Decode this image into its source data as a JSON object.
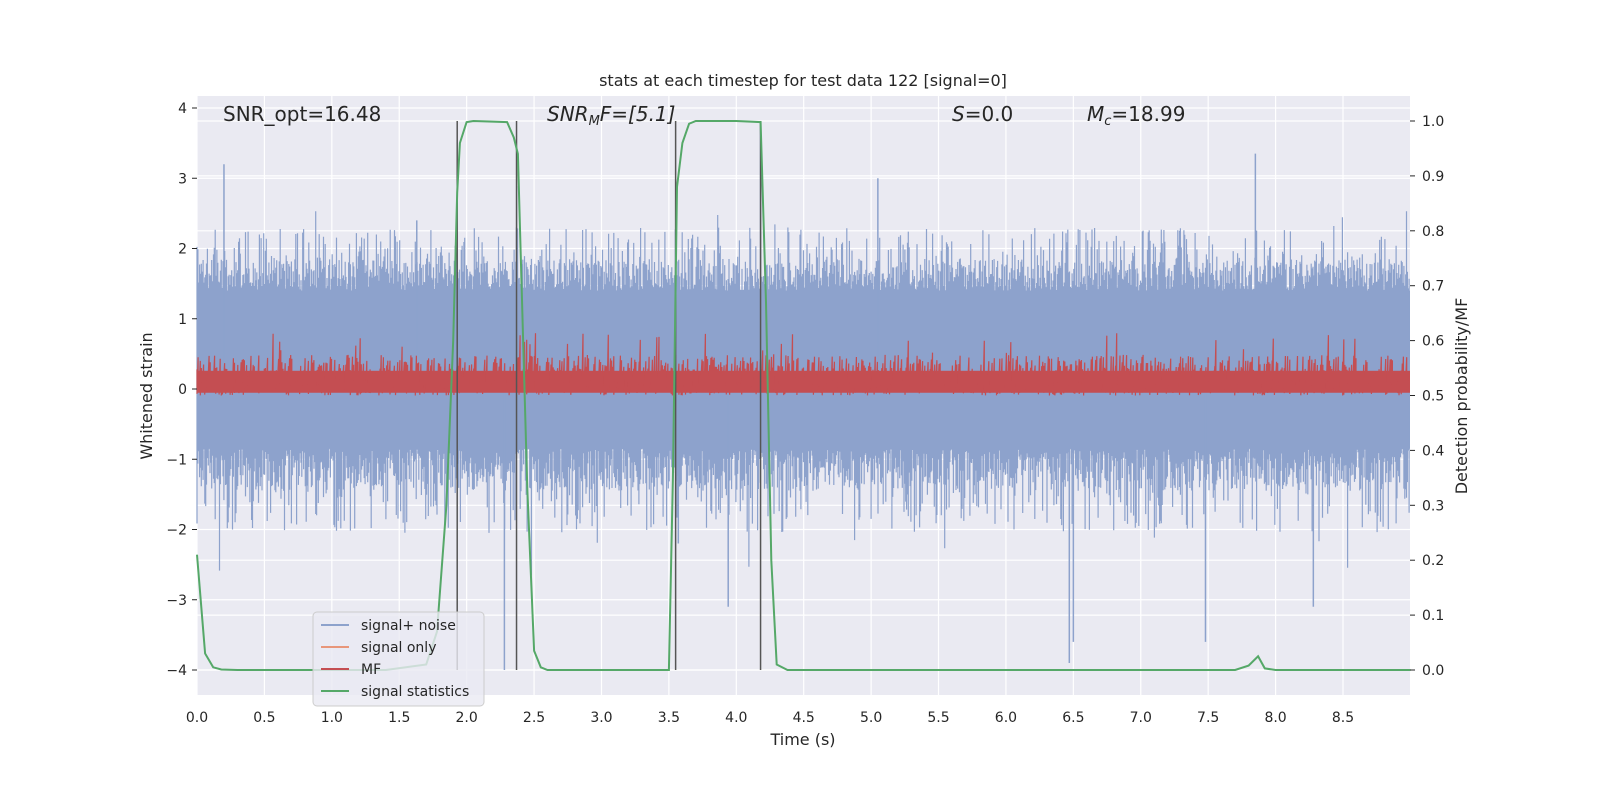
{
  "chart_data": {
    "type": "line",
    "title": "stats at each timestep for test data 122 [signal=0]",
    "xlabel": "Time (s)",
    "ylabel": "Whitened strain",
    "y2label": "Detection probability/MF",
    "xlim": [
      0.0,
      9.0
    ],
    "ylim": [
      -4.35,
      4.2
    ],
    "y2lim": [
      -0.05,
      1.04
    ],
    "xticks": [
      "0.0",
      "0.5",
      "1.0",
      "1.5",
      "2.0",
      "2.5",
      "3.0",
      "3.5",
      "4.0",
      "4.5",
      "5.0",
      "5.5",
      "6.0",
      "6.5",
      "7.0",
      "7.5",
      "8.0",
      "8.5"
    ],
    "yticks": [
      "−4",
      "−3",
      "−2",
      "−1",
      "0",
      "1",
      "2",
      "3",
      "4"
    ],
    "y2ticks": [
      "0.0",
      "0.1",
      "0.2",
      "0.3",
      "0.4",
      "0.5",
      "0.6",
      "0.7",
      "0.8",
      "0.9",
      "1.0"
    ],
    "annotations": {
      "snr_opt": "SNR_opt=16.48",
      "snr_mf_pre": "SNR",
      "snr_mf_sub": "M",
      "snr_mf_post": "F=[5.1]",
      "s_pre": "S",
      "s_post": "=0.0",
      "mc_pre": "M",
      "mc_sub": "c",
      "mc_post": "=18.99"
    },
    "legend": {
      "placement": "lower-left",
      "entries": [
        "signal+ noise",
        "signal only",
        "MF",
        "signal statistics"
      ]
    },
    "vertical_lines_x": [
      1.93,
      2.37,
      3.55,
      4.18
    ],
    "colors": {
      "noise": "#8da2cc",
      "signal_only": "#e8967a",
      "mf": "#c44e52",
      "stats": "#55a868",
      "vline": "#555555",
      "background": "#eaeaf2",
      "grid": "#ffffff"
    },
    "series": [
      {
        "name": "signal statistics",
        "axis": "y2",
        "x": [
          0.0,
          0.06,
          0.12,
          0.18,
          0.3,
          0.6,
          1.0,
          1.4,
          1.7,
          1.78,
          1.85,
          1.9,
          1.93,
          1.95,
          2.0,
          2.05,
          2.3,
          2.35,
          2.38,
          2.45,
          2.5,
          2.55,
          2.6,
          3.0,
          3.5,
          3.53,
          3.56,
          3.6,
          3.65,
          3.7,
          4.0,
          4.18,
          4.22,
          4.26,
          4.3,
          4.38,
          4.5,
          5.0,
          6.0,
          7.0,
          7.7,
          7.8,
          7.87,
          7.92,
          8.0,
          8.5,
          9.0
        ],
        "y": [
          0.21,
          0.03,
          0.005,
          0.001,
          0.0,
          0.0,
          0.0,
          0.0,
          0.01,
          0.07,
          0.3,
          0.6,
          0.87,
          0.96,
          0.998,
          1.0,
          0.998,
          0.97,
          0.94,
          0.33,
          0.035,
          0.005,
          0.0,
          0.0,
          0.0,
          0.35,
          0.88,
          0.96,
          0.995,
          1.0,
          1.0,
          0.998,
          0.67,
          0.2,
          0.01,
          0.0,
          0.0,
          0.0,
          0.0,
          0.0,
          0.0,
          0.008,
          0.025,
          0.003,
          0.0,
          0.0,
          0.0
        ]
      },
      {
        "name": "signal+ noise",
        "axis": "y",
        "generated_from": "noise envelope",
        "band_inner": [
          -0.85,
          1.4
        ],
        "typical_range": [
          -2.3,
          2.3
        ]
      },
      {
        "name": "MF",
        "axis": "y",
        "generated_from": "noise envelope",
        "band": [
          0.02,
          0.62
        ]
      }
    ]
  }
}
